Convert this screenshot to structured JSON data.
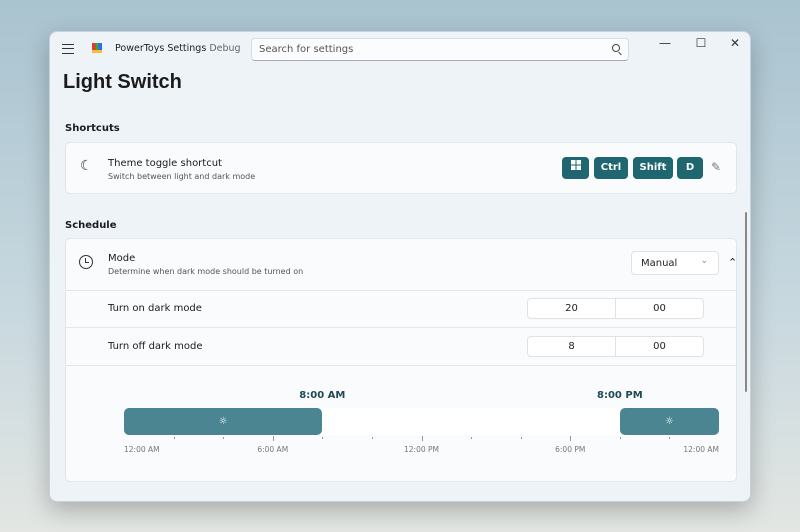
{
  "window": {
    "app_title": "PowerToys Settings",
    "build_tag": "Debug",
    "search_placeholder": "Search for settings",
    "icons": [
      "menu-icon",
      "powertoys-logo",
      "search-icon",
      "minimize-icon",
      "maximize-icon",
      "close-icon"
    ]
  },
  "page": {
    "title": "Light Switch"
  },
  "shortcuts": {
    "header": "Shortcuts",
    "title": "Theme toggle shortcut",
    "description": "Switch between light and dark mode",
    "keys": [
      "Win",
      "Ctrl",
      "Shift",
      "D"
    ],
    "icon": "moon-icon"
  },
  "schedule": {
    "header": "Schedule",
    "mode_title": "Mode",
    "mode_description": "Determine when dark mode should be turned on",
    "mode_value": "Manual",
    "on_label": "Turn on dark mode",
    "on_hour": "20",
    "on_minute": "00",
    "off_label": "Turn off dark mode",
    "off_hour": "8",
    "off_minute": "00"
  },
  "timeline": {
    "sunrise_label": "8:00 AM",
    "sunset_label": "8:00 PM",
    "dark_start_hour": 20,
    "dark_end_hour": 8,
    "axis_labels": [
      "12:00 AM",
      "6:00 AM",
      "12:00 PM",
      "6:00 PM",
      "12:00 AM"
    ],
    "accent": "#4a8591"
  }
}
